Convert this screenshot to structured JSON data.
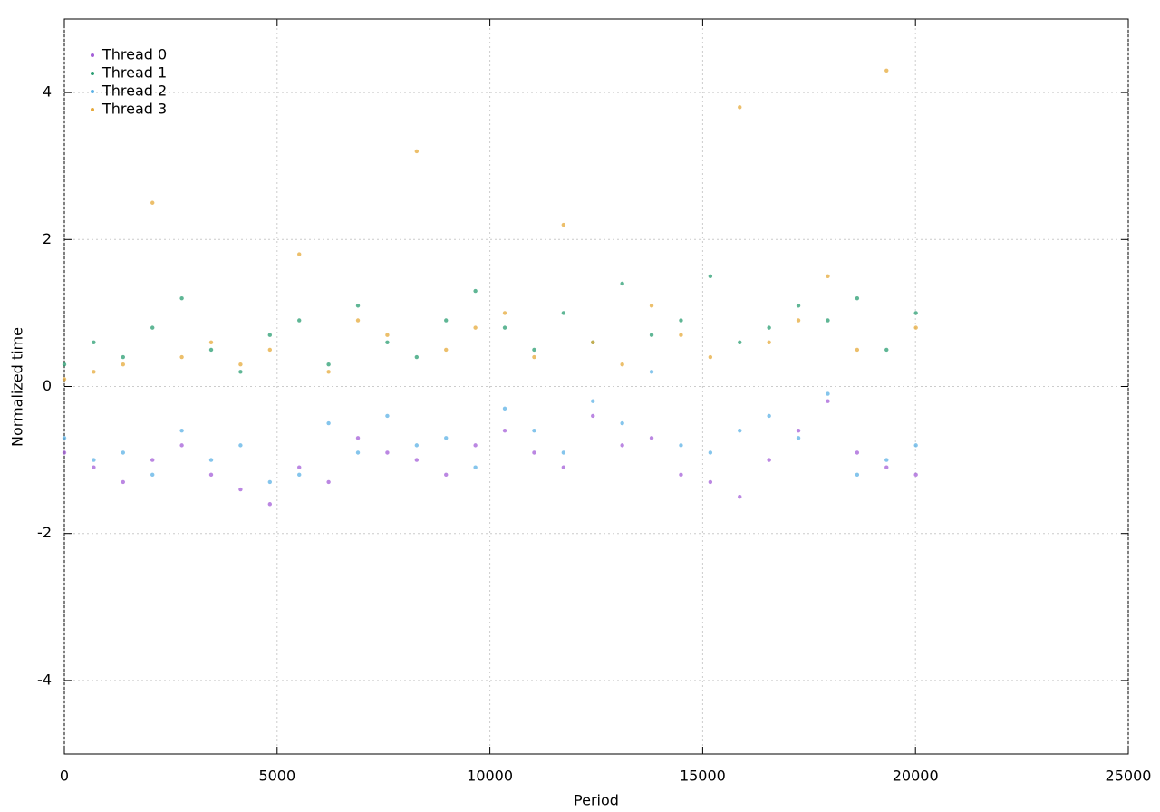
{
  "chart_data": {
    "type": "scatter",
    "xlabel": "Period",
    "ylabel": "Normalized time",
    "xlim": [
      0,
      25000
    ],
    "ylim": [
      -5,
      5
    ],
    "xticks": [
      0,
      5000,
      10000,
      15000,
      20000,
      25000
    ],
    "yticks": [
      -4,
      -2,
      0,
      2,
      4
    ],
    "grid": true,
    "legend": "top-left",
    "x": [
      0,
      690,
      1380,
      2070,
      2760,
      3450,
      4140,
      4830,
      5520,
      6210,
      6900,
      7590,
      8280,
      8970,
      9660,
      10350,
      11040,
      11730,
      12420,
      13110,
      13800,
      14490,
      15180,
      15870,
      16560,
      17250,
      17940,
      18630,
      19320,
      20010
    ],
    "series": [
      {
        "name": "Thread 0",
        "color": "#a45fd8",
        "values": [
          -0.9,
          -1.1,
          -1.3,
          -1.0,
          -0.8,
          -1.2,
          -1.4,
          -1.6,
          -1.1,
          -1.3,
          -0.7,
          -0.9,
          -1.0,
          -1.2,
          -0.8,
          -0.6,
          -0.9,
          -1.1,
          -0.4,
          -0.8,
          -0.7,
          -1.2,
          -1.3,
          -1.5,
          -1.0,
          -0.6,
          -0.2,
          -0.9,
          -1.1,
          -1.2
        ]
      },
      {
        "name": "Thread 1",
        "color": "#2a9d72",
        "values": [
          0.3,
          0.6,
          0.4,
          0.8,
          1.2,
          0.5,
          0.2,
          0.7,
          0.9,
          0.3,
          1.1,
          0.6,
          0.4,
          0.9,
          1.3,
          0.8,
          0.5,
          1.0,
          0.6,
          1.4,
          0.7,
          0.9,
          1.5,
          0.6,
          0.8,
          1.1,
          0.9,
          1.2,
          0.5,
          1.0
        ]
      },
      {
        "name": "Thread 2",
        "color": "#5cb2e6",
        "values": [
          -0.7,
          -1.0,
          -0.9,
          -1.2,
          -0.6,
          -1.0,
          -0.8,
          -1.3,
          -1.2,
          -0.5,
          -0.9,
          -0.4,
          -0.8,
          -0.7,
          -1.1,
          -0.3,
          -0.6,
          -0.9,
          -0.2,
          -0.5,
          0.2,
          -0.8,
          -0.9,
          -0.6,
          -0.4,
          -0.7,
          -0.1,
          -1.2,
          -1.0,
          -0.8
        ]
      },
      {
        "name": "Thread 3",
        "color": "#e6a93a",
        "values": [
          0.1,
          0.2,
          0.3,
          2.5,
          0.4,
          0.6,
          0.3,
          0.5,
          1.8,
          0.2,
          0.9,
          0.7,
          3.2,
          0.5,
          0.8,
          1.0,
          0.4,
          2.2,
          0.6,
          0.3,
          1.1,
          0.7,
          0.4,
          3.8,
          0.6,
          0.9,
          1.5,
          0.5,
          4.3,
          0.8
        ]
      }
    ]
  }
}
